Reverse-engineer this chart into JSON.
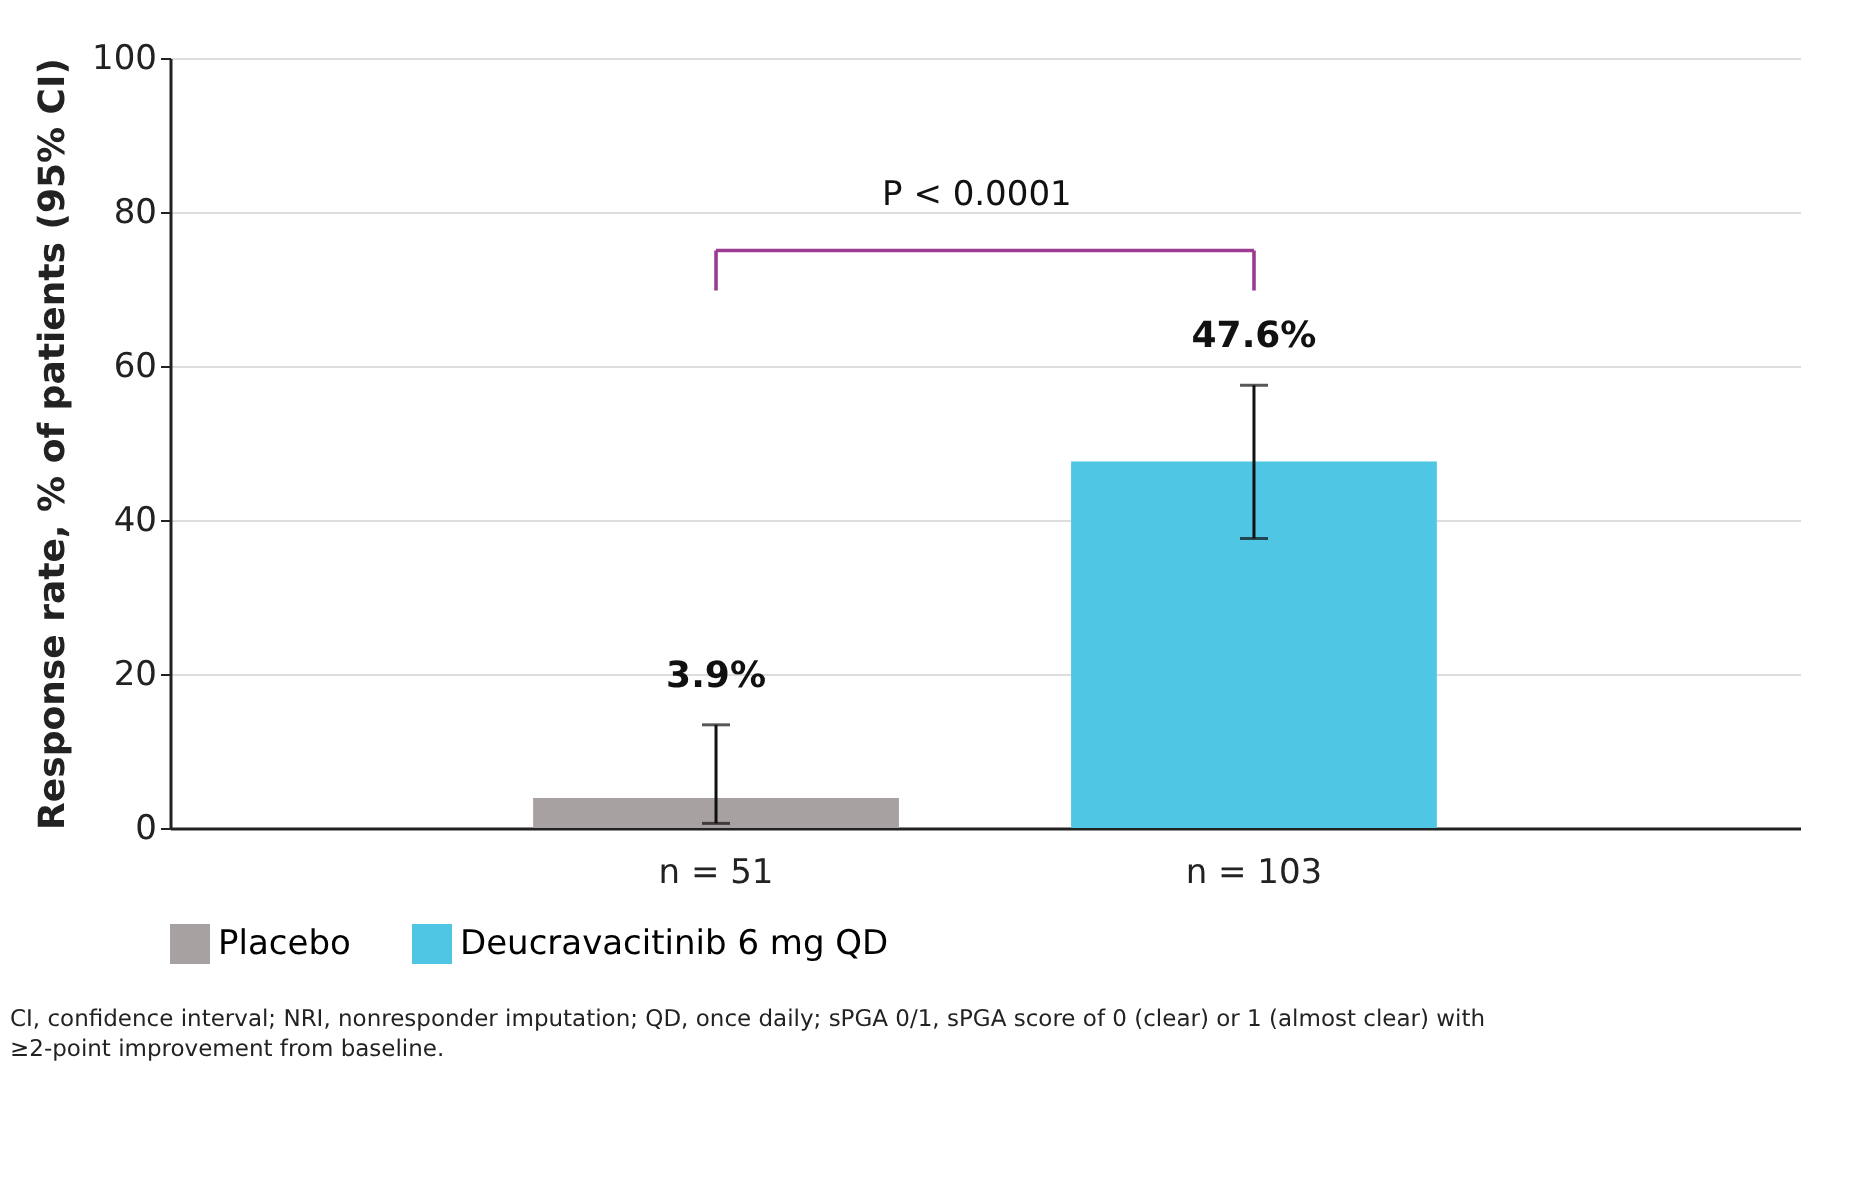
{
  "chart_data": {
    "type": "bar",
    "ylabel": "Response rate, % of patients (95% CI)",
    "categories": [
      "n = 51",
      "n = 103"
    ],
    "series": [
      {
        "name": "Placebo",
        "color": "#a7a1a1",
        "values": [
          3.9,
          null
        ],
        "errors": [
          [
            0.6,
            13.4
          ],
          null
        ],
        "value_labels": [
          "3.9%",
          null
        ]
      },
      {
        "name": "Deucravacitinib 6 mg QD",
        "color": "#4fc6e4",
        "values": [
          null,
          47.6
        ],
        "errors": [
          null,
          [
            37.6,
            57.5
          ]
        ],
        "value_labels": [
          null,
          "47.6%"
        ]
      }
    ],
    "ylim": [
      0,
      100
    ],
    "yticks": [
      0,
      20,
      40,
      60,
      80,
      100
    ],
    "grid": "y",
    "legend": "bottom",
    "annotations": [
      "P < 0.0001",
      "CI, confidence interval; NRI, nonresponder imputation; QD, once daily; sPGA 0/1, sPGA score of 0 (clear) or 1 (almost clear) with ≥2-point improvement from baseline."
    ]
  }
}
